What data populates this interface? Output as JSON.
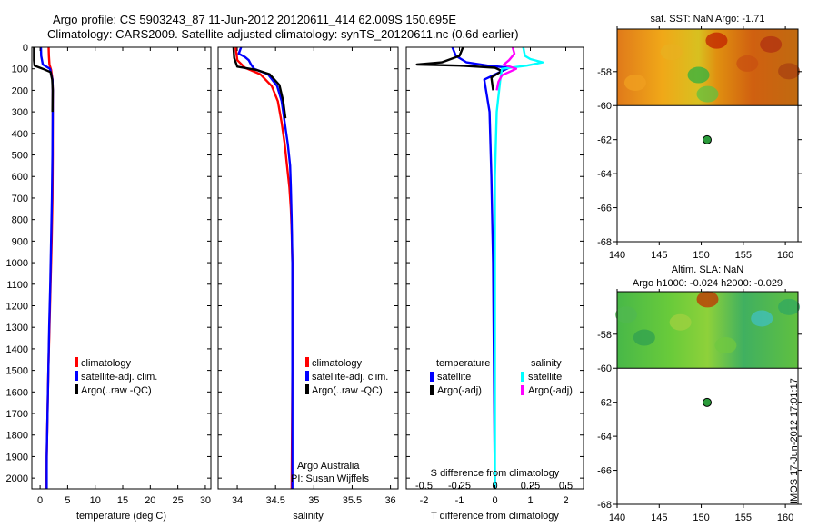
{
  "title_line1": "Argo profile: CS 5903243_87 11-Jun-2012 20120611_414 62.009S 150.695E",
  "title_line2": "Climatology: CARS2009. Satellite-adjusted climatology: synTS_20120611.nc (0.6d earlier)",
  "credit": {
    "line1": "Argo Australia",
    "line2": "PI: Susan Wijffels"
  },
  "stamp": "IMOS 17-Jun-2012 17:01:17",
  "colors": {
    "climatology": "#ff0000",
    "satellite": "#0000ff",
    "argo": "#000000",
    "satellite_salinity": "#00ffff",
    "argo_salinity": "#ff00ff",
    "float_marker": "#2a9a3a"
  },
  "chart_data": [
    {
      "type": "line",
      "id": "temperature",
      "xlabel": "temperature (deg C)",
      "ylim": [
        2050,
        0
      ],
      "xlim": [
        -1.5,
        31
      ],
      "xticks": [
        0,
        5,
        10,
        15,
        20,
        25,
        30
      ],
      "yticks": [
        0,
        100,
        200,
        300,
        400,
        500,
        600,
        700,
        800,
        900,
        1000,
        1100,
        1200,
        1300,
        1400,
        1500,
        1600,
        1700,
        1800,
        1900,
        2000
      ],
      "legend": [
        "climatology",
        "satellite-adj. clim.",
        "Argo(..raw -QC)"
      ],
      "series": [
        {
          "name": "climatology",
          "color": "#ff0000",
          "points": [
            [
              1.55,
              0
            ],
            [
              1.6,
              40
            ],
            [
              1.7,
              80
            ],
            [
              2.0,
              105
            ],
            [
              2.25,
              150
            ],
            [
              2.3,
              200
            ],
            [
              2.3,
              300
            ],
            [
              2.3,
              500
            ],
            [
              2.25,
              700
            ],
            [
              2.1,
              900
            ],
            [
              1.9,
              1100
            ],
            [
              1.7,
              1300
            ],
            [
              1.5,
              1500
            ],
            [
              1.35,
              1700
            ],
            [
              1.2,
              1900
            ],
            [
              1.15,
              2050
            ]
          ]
        },
        {
          "name": "satellite-adj. clim.",
          "color": "#0000ff",
          "points": [
            [
              0.15,
              0
            ],
            [
              0.2,
              40
            ],
            [
              0.5,
              80
            ],
            [
              1.8,
              100
            ],
            [
              2.25,
              150
            ],
            [
              2.3,
              200
            ],
            [
              2.3,
              300
            ],
            [
              2.25,
              500
            ],
            [
              2.15,
              700
            ],
            [
              2.0,
              900
            ],
            [
              1.85,
              1100
            ],
            [
              1.65,
              1300
            ],
            [
              1.5,
              1500
            ],
            [
              1.35,
              1700
            ],
            [
              1.2,
              1900
            ],
            [
              1.2,
              2050
            ]
          ]
        },
        {
          "name": "Argo(..raw -QC)",
          "color": "#000000",
          "points": [
            [
              -1.1,
              0
            ],
            [
              -1.1,
              60
            ],
            [
              -1.0,
              85
            ],
            [
              0.5,
              100
            ],
            [
              1.9,
              115
            ],
            [
              2.2,
              150
            ],
            [
              2.3,
              200
            ],
            [
              2.25,
              300
            ]
          ]
        }
      ]
    },
    {
      "type": "line",
      "id": "salinity",
      "xlabel": "salinity",
      "ylim": [
        2050,
        0
      ],
      "xlim": [
        33.75,
        36.1
      ],
      "xticks": [
        34,
        34.5,
        35,
        35.5,
        36
      ],
      "xticklabels": [
        "34",
        "34.5",
        "35",
        "35.5",
        "36"
      ],
      "legend": [
        "climatology",
        "satellite-adj. clim.",
        "Argo(..raw -QC)"
      ],
      "series": [
        {
          "name": "climatology",
          "color": "#ff0000",
          "points": [
            [
              33.98,
              0
            ],
            [
              34.0,
              60
            ],
            [
              34.1,
              95
            ],
            [
              34.3,
              125
            ],
            [
              34.45,
              180
            ],
            [
              34.53,
              250
            ],
            [
              34.58,
              350
            ],
            [
              34.62,
              450
            ],
            [
              34.65,
              550
            ],
            [
              34.68,
              650
            ],
            [
              34.7,
              750
            ],
            [
              34.71,
              850
            ],
            [
              34.72,
              1000
            ],
            [
              34.72,
              1500
            ],
            [
              34.71,
              2050
            ]
          ]
        },
        {
          "name": "satellite-adj. clim.",
          "color": "#0000ff",
          "points": [
            [
              34.05,
              0
            ],
            [
              34.02,
              30
            ],
            [
              34.1,
              45
            ],
            [
              34.15,
              60
            ],
            [
              34.18,
              80
            ],
            [
              34.22,
              100
            ],
            [
              34.4,
              125
            ],
            [
              34.52,
              180
            ],
            [
              34.58,
              250
            ],
            [
              34.62,
              350
            ],
            [
              34.66,
              450
            ],
            [
              34.69,
              550
            ],
            [
              34.7,
              650
            ],
            [
              34.71,
              800
            ],
            [
              34.72,
              1000
            ],
            [
              34.72,
              1500
            ],
            [
              34.72,
              2050
            ]
          ]
        },
        {
          "name": "Argo(..raw -QC)",
          "color": "#000000",
          "points": [
            [
              33.95,
              0
            ],
            [
              33.96,
              50
            ],
            [
              34.0,
              90
            ],
            [
              34.25,
              105
            ],
            [
              34.42,
              125
            ],
            [
              34.55,
              175
            ],
            [
              34.6,
              250
            ],
            [
              34.63,
              330
            ]
          ]
        }
      ]
    },
    {
      "type": "line",
      "id": "difference",
      "xlabel": "T difference from climatology",
      "xlabel_top": "S difference from climatology",
      "ylim": [
        2050,
        0
      ],
      "xlim": [
        -2.5,
        2.5
      ],
      "xticks": [
        -2,
        -1,
        0,
        1,
        2
      ],
      "top_axis_ticks": [
        -0.5,
        -0.25,
        0,
        0.25,
        0.5
      ],
      "legend_headers": [
        "temperature",
        "salinity"
      ],
      "legend": [
        "satellite",
        "Argo(-adj)",
        "satellite",
        "Argo(-adj)"
      ],
      "series": [
        {
          "name": "satellite",
          "quantity": "temperature",
          "color": "#0000ff",
          "points": [
            [
              -1.2,
              0
            ],
            [
              -1.1,
              40
            ],
            [
              -0.8,
              70
            ],
            [
              -0.2,
              85
            ],
            [
              0.4,
              95
            ],
            [
              -0.3,
              150
            ],
            [
              -0.15,
              300
            ],
            [
              -0.1,
              600
            ],
            [
              -0.05,
              1000
            ],
            [
              0,
              2050
            ]
          ]
        },
        {
          "name": "Argo(-adj)",
          "quantity": "temperature",
          "color": "#000000",
          "points": [
            [
              -0.9,
              0
            ],
            [
              -1.0,
              40
            ],
            [
              -1.5,
              70
            ],
            [
              -2.2,
              80
            ],
            [
              -1.0,
              85
            ],
            [
              0.0,
              95
            ],
            [
              0.2,
              110
            ],
            [
              -0.1,
              140
            ],
            [
              -0.05,
              200
            ]
          ]
        },
        {
          "name": "satellite",
          "quantity": "salinity",
          "color": "#00ffff",
          "points": [
            [
              0.8,
              0
            ],
            [
              0.85,
              40
            ],
            [
              1.0,
              55
            ],
            [
              1.35,
              70
            ],
            [
              0.9,
              85
            ],
            [
              0.2,
              100
            ],
            [
              0.15,
              150
            ],
            [
              0.05,
              300
            ],
            [
              0.0,
              600
            ],
            [
              0.0,
              2050
            ]
          ]
        },
        {
          "name": "Argo(-adj)",
          "quantity": "salinity",
          "color": "#ff00ff",
          "points": [
            [
              0.5,
              0
            ],
            [
              0.55,
              30
            ],
            [
              0.4,
              60
            ],
            [
              0.25,
              80
            ],
            [
              0.6,
              100
            ],
            [
              0.2,
              130
            ],
            [
              0.1,
              160
            ],
            [
              0.05,
              200
            ]
          ]
        }
      ]
    },
    {
      "type": "heatmap",
      "id": "sst_map",
      "title": "sat. SST: NaN Argo: -1.71",
      "xlim": [
        140,
        161.5
      ],
      "ylim": [
        -68,
        -55.5
      ],
      "xticks": [
        140,
        145,
        150,
        155,
        160
      ],
      "yticks": [
        -68,
        -66,
        -64,
        -62,
        -60,
        -58
      ],
      "data_lat_min": -60,
      "float_marker": [
        150.695,
        -62.009
      ]
    },
    {
      "type": "heatmap",
      "id": "sla_map",
      "title_line1": "Altim. SLA: NaN",
      "title_line2": "Argo h1000: -0.024 h2000: -0.029",
      "xlim": [
        140,
        161.5
      ],
      "ylim": [
        -68,
        -55.5
      ],
      "xticks": [
        140,
        145,
        150,
        155,
        160
      ],
      "yticks": [
        -68,
        -66,
        -64,
        -62,
        -60,
        -58
      ],
      "data_lat_min": -60,
      "float_marker": [
        150.695,
        -62.009
      ]
    }
  ]
}
